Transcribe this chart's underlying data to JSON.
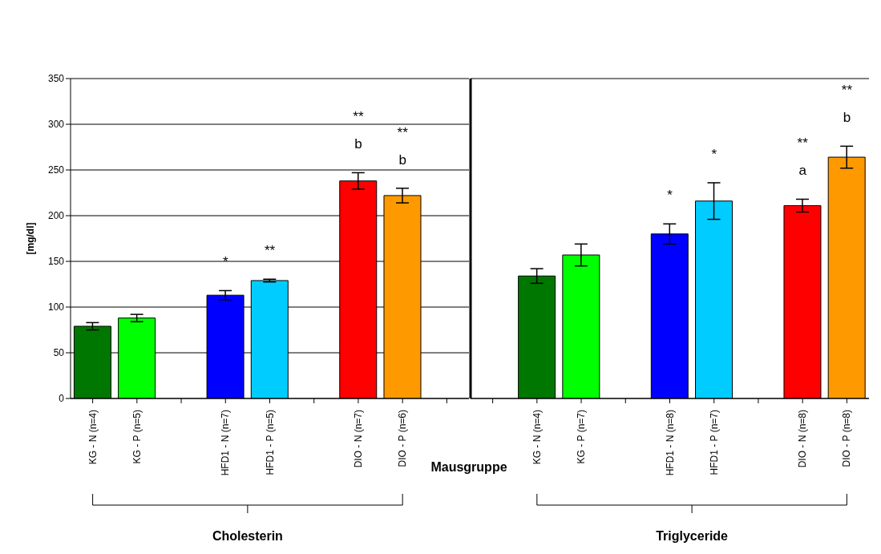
{
  "chart_data": [
    {
      "type": "bar",
      "xlabel": "Mausgruppe",
      "ylabel": "[mg/dl]",
      "categories": [
        "KG - N (n=4)",
        "KG - P (n=5)",
        null,
        "HFD1 - N (n=7)",
        "HFD1 - P (n=5)",
        null,
        "DIO - N (n=7)",
        "DIO - P (n=6)",
        null
      ],
      "values": [
        79,
        88,
        null,
        113,
        129,
        null,
        238,
        222,
        null
      ],
      "errors": [
        4,
        4,
        null,
        5,
        1.5,
        null,
        9,
        8,
        null
      ],
      "colors": [
        "#007700",
        "#00ff00",
        null,
        "#0000ff",
        "#00ccff",
        null,
        "#ff0000",
        "#ff9900",
        null
      ],
      "ylim": [
        0,
        350
      ],
      "yticks": [
        0,
        50,
        100,
        150,
        200,
        250,
        300,
        350
      ],
      "grid": "y",
      "annotations": [
        "*",
        "**",
        "**",
        "b",
        "**",
        "b",
        "Cholesterin"
      ]
    },
    {
      "type": "bar",
      "categories": [
        null,
        "KG - N (n=4)",
        "KG - P (n=7)",
        null,
        "HFD1 - N (n=8)",
        "HFD1 - P (n=7)",
        null,
        "DIO - N (n=8)",
        "DIO - P (n=8)"
      ],
      "values": [
        null,
        134,
        157,
        null,
        180,
        216,
        null,
        211,
        264
      ],
      "errors": [
        null,
        8,
        12,
        null,
        11,
        20,
        null,
        7,
        12
      ],
      "colors": [
        null,
        "#007700",
        "#00ff00",
        null,
        "#0000ff",
        "#00ccff",
        null,
        "#ff0000",
        "#ff9900"
      ],
      "ylim": [
        0,
        350
      ],
      "yticks": [
        0,
        50,
        100,
        150,
        200,
        250,
        300,
        350
      ],
      "grid": "y",
      "tick_labels": "x",
      "annotations": [
        "*",
        "*",
        "**",
        "a",
        "**",
        "b",
        "Triglyceride"
      ]
    }
  ]
}
